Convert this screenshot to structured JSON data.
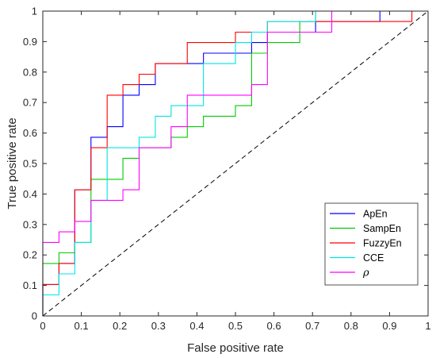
{
  "chart_data": {
    "type": "line",
    "title": "",
    "xlabel": "False positive rate",
    "ylabel": "True positive rate",
    "xlim": [
      0,
      1
    ],
    "ylim": [
      0,
      1
    ],
    "xticks": [
      "0",
      "0.1",
      "0.2",
      "0.3",
      "0.4",
      "0.5",
      "0.6",
      "0.7",
      "0.8",
      "0.9",
      "1"
    ],
    "yticks": [
      "0",
      "0.1",
      "0.2",
      "0.3",
      "0.4",
      "0.5",
      "0.6",
      "0.7",
      "0.8",
      "0.9",
      "1"
    ],
    "grid": false,
    "legend_position": "bottom-right",
    "reference_line": {
      "x": [
        0,
        1
      ],
      "y": [
        0,
        1
      ],
      "style": "dashed",
      "color": "#000000"
    },
    "series": [
      {
        "name": "ApEn",
        "color": "#0000ff",
        "x": [
          0,
          0,
          0.042,
          0.042,
          0.083,
          0.083,
          0.125,
          0.125,
          0.167,
          0.167,
          0.208,
          0.208,
          0.25,
          0.25,
          0.292,
          0.292,
          0.417,
          0.417,
          0.542,
          0.542,
          0.583,
          0.583,
          0.708,
          0.708,
          0.875,
          0.875,
          1
        ],
        "y": [
          0,
          0.103,
          0.103,
          0.172,
          0.172,
          0.414,
          0.414,
          0.586,
          0.586,
          0.621,
          0.621,
          0.724,
          0.724,
          0.759,
          0.759,
          0.828,
          0.828,
          0.862,
          0.862,
          0.897,
          0.897,
          0.931,
          0.931,
          0.966,
          0.966,
          1,
          1
        ]
      },
      {
        "name": "SampEn",
        "color": "#00cc00",
        "x": [
          0,
          0,
          0.042,
          0.042,
          0.083,
          0.083,
          0.125,
          0.125,
          0.208,
          0.208,
          0.25,
          0.25,
          0.333,
          0.333,
          0.375,
          0.375,
          0.417,
          0.417,
          0.5,
          0.5,
          0.542,
          0.542,
          0.583,
          0.583,
          0.667,
          0.667,
          0.708,
          0.708,
          1
        ],
        "y": [
          0,
          0.172,
          0.172,
          0.207,
          0.207,
          0.241,
          0.241,
          0.448,
          0.448,
          0.517,
          0.517,
          0.552,
          0.552,
          0.586,
          0.586,
          0.621,
          0.621,
          0.655,
          0.655,
          0.69,
          0.69,
          0.862,
          0.862,
          0.897,
          0.897,
          0.966,
          0.966,
          1,
          1
        ]
      },
      {
        "name": "FuzzyEn",
        "color": "#ff0000",
        "x": [
          0,
          0,
          0.042,
          0.042,
          0.083,
          0.083,
          0.125,
          0.125,
          0.167,
          0.167,
          0.208,
          0.208,
          0.25,
          0.25,
          0.292,
          0.292,
          0.375,
          0.375,
          0.5,
          0.5,
          0.583,
          0.583,
          0.958,
          0.958,
          1
        ],
        "y": [
          0,
          0.103,
          0.103,
          0.172,
          0.172,
          0.414,
          0.414,
          0.552,
          0.552,
          0.724,
          0.724,
          0.759,
          0.759,
          0.793,
          0.793,
          0.828,
          0.828,
          0.897,
          0.897,
          0.931,
          0.931,
          0.966,
          0.966,
          1,
          1
        ]
      },
      {
        "name": "CCE",
        "color": "#00e5e5",
        "x": [
          0,
          0,
          0.042,
          0.042,
          0.083,
          0.083,
          0.125,
          0.125,
          0.167,
          0.167,
          0.25,
          0.25,
          0.292,
          0.292,
          0.333,
          0.333,
          0.417,
          0.417,
          0.5,
          0.5,
          0.542,
          0.542,
          0.583,
          0.583,
          0.708,
          0.708,
          1
        ],
        "y": [
          0,
          0.069,
          0.069,
          0.138,
          0.138,
          0.241,
          0.241,
          0.379,
          0.379,
          0.552,
          0.552,
          0.586,
          0.586,
          0.655,
          0.655,
          0.69,
          0.69,
          0.828,
          0.828,
          0.897,
          0.897,
          0.931,
          0.931,
          0.966,
          0.966,
          1,
          1
        ]
      },
      {
        "name": "ρ",
        "color": "#ff00ff",
        "x": [
          0,
          0,
          0.042,
          0.042,
          0.083,
          0.083,
          0.125,
          0.125,
          0.208,
          0.208,
          0.25,
          0.25,
          0.333,
          0.333,
          0.375,
          0.375,
          0.542,
          0.542,
          0.583,
          0.583,
          0.75,
          0.75,
          1
        ],
        "y": [
          0,
          0.241,
          0.241,
          0.276,
          0.276,
          0.31,
          0.31,
          0.379,
          0.379,
          0.414,
          0.414,
          0.552,
          0.552,
          0.621,
          0.621,
          0.724,
          0.724,
          0.759,
          0.759,
          0.931,
          0.931,
          1,
          1
        ]
      }
    ]
  }
}
